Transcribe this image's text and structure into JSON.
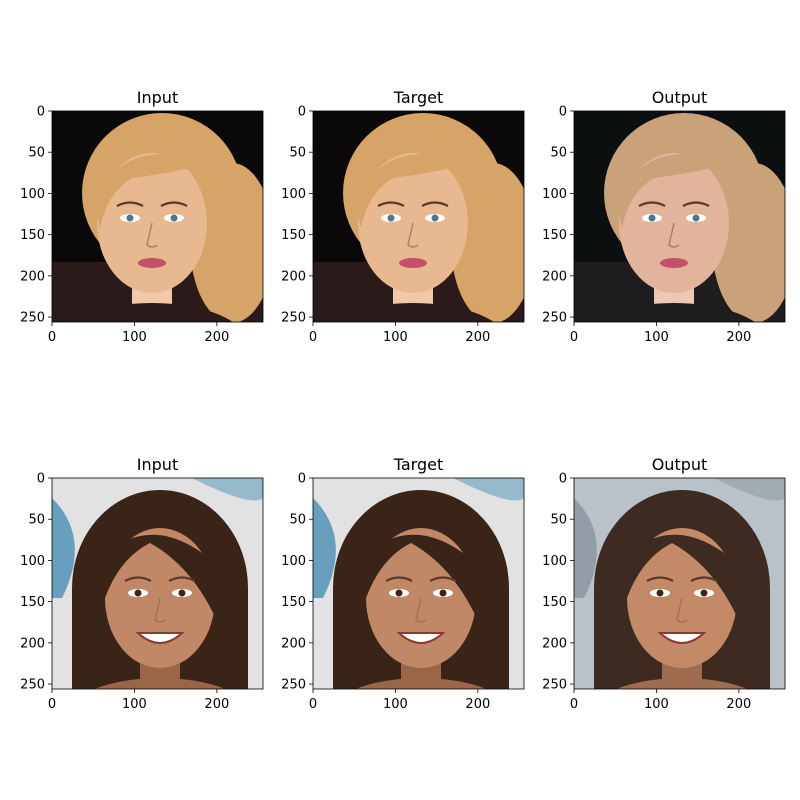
{
  "figure": {
    "background": "#ffffff",
    "rows": 2,
    "columns": 3
  },
  "chart_data": [
    {
      "type": "image",
      "title": "Input",
      "image": "face photo: woman with blonde hair swept to the side, dark background",
      "xlim": [
        0,
        256
      ],
      "ylim": [
        256,
        0
      ],
      "xticks": [
        0,
        100,
        200
      ],
      "yticks": [
        0,
        50,
        100,
        150,
        200,
        250
      ],
      "palette": [
        "#0a0808",
        "#2a1a1a",
        "#d6a466",
        "#e8b890",
        "#f2c8a8"
      ]
    },
    {
      "type": "image",
      "title": "Target",
      "image": "face photo: woman with blonde hair swept to the side, dark background",
      "xlim": [
        0,
        256
      ],
      "ylim": [
        256,
        0
      ],
      "xticks": [
        0,
        100,
        200
      ],
      "yticks": [
        0,
        50,
        100,
        150,
        200,
        250
      ],
      "palette": [
        "#0a0808",
        "#2a1a1a",
        "#d6a466",
        "#e8b890",
        "#f2c8a8"
      ]
    },
    {
      "type": "image",
      "title": "Output",
      "image": "reconstructed face: smoother blonde hair, dark background",
      "xlim": [
        0,
        256
      ],
      "ylim": [
        256,
        0
      ],
      "xticks": [
        0,
        100,
        200
      ],
      "yticks": [
        0,
        50,
        100,
        150,
        200,
        250
      ],
      "palette": [
        "#0b0f10",
        "#1e1c1c",
        "#c9a27a",
        "#e3b49c",
        "#efc8b4"
      ]
    },
    {
      "type": "image",
      "title": "Input",
      "image": "face photo: smiling woman with brown shoulder-length hair, graffiti background",
      "xlim": [
        0,
        256
      ],
      "ylim": [
        256,
        0
      ],
      "xticks": [
        0,
        100,
        200
      ],
      "yticks": [
        0,
        50,
        100,
        150,
        200,
        250
      ],
      "palette": [
        "#e2e2e2",
        "#4a8fb4",
        "#3a2418",
        "#c08866",
        "#9a6548"
      ]
    },
    {
      "type": "image",
      "title": "Target",
      "image": "face photo: smiling woman with brown shoulder-length hair, graffiti background",
      "xlim": [
        0,
        256
      ],
      "ylim": [
        256,
        0
      ],
      "xticks": [
        0,
        100,
        200
      ],
      "yticks": [
        0,
        50,
        100,
        150,
        200,
        250
      ],
      "palette": [
        "#e2e2e2",
        "#4a8fb4",
        "#3a2418",
        "#c08866",
        "#9a6548"
      ]
    },
    {
      "type": "image",
      "title": "Output",
      "image": "reconstructed face: smiling woman with brown hair, blurry grey background",
      "xlim": [
        0,
        256
      ],
      "ylim": [
        256,
        0
      ],
      "xticks": [
        0,
        100,
        200
      ],
      "yticks": [
        0,
        50,
        100,
        150,
        200,
        250
      ],
      "palette": [
        "#b9c2c8",
        "#8a949c",
        "#3d2a20",
        "#c48a68",
        "#a06c50"
      ]
    }
  ]
}
